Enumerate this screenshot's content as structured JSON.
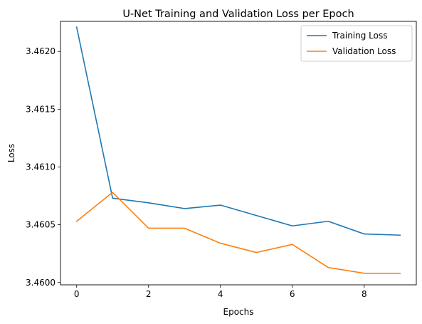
{
  "chart_data": {
    "type": "line",
    "title": "U-Net Training and Validation Loss per Epoch",
    "xlabel": "Epochs",
    "ylabel": "Loss",
    "xlim": [
      -0.45,
      9.45
    ],
    "ylim": [
      3.45998,
      3.46226
    ],
    "xticks": [
      0,
      2,
      4,
      6,
      8
    ],
    "yticks": [
      3.46,
      3.4605,
      3.461,
      3.4615,
      3.462
    ],
    "ytick_labels": [
      "3.4600",
      "3.4605",
      "3.4610",
      "3.4615",
      "3.4620"
    ],
    "grid": false,
    "legend_position": "top-right",
    "x": [
      0,
      1,
      2,
      3,
      4,
      5,
      6,
      7,
      8,
      9
    ],
    "series": [
      {
        "name": "Training Loss",
        "color": "#1f77b4",
        "values": [
          3.46221,
          3.46073,
          3.46069,
          3.46064,
          3.46067,
          3.46058,
          3.46049,
          3.46053,
          3.46042,
          3.46041
        ]
      },
      {
        "name": "Validation Loss",
        "color": "#ff7f0e",
        "values": [
          3.46053,
          3.46078,
          3.46047,
          3.46047,
          3.46034,
          3.46026,
          3.46033,
          3.46013,
          3.46008,
          3.46008
        ]
      }
    ]
  }
}
